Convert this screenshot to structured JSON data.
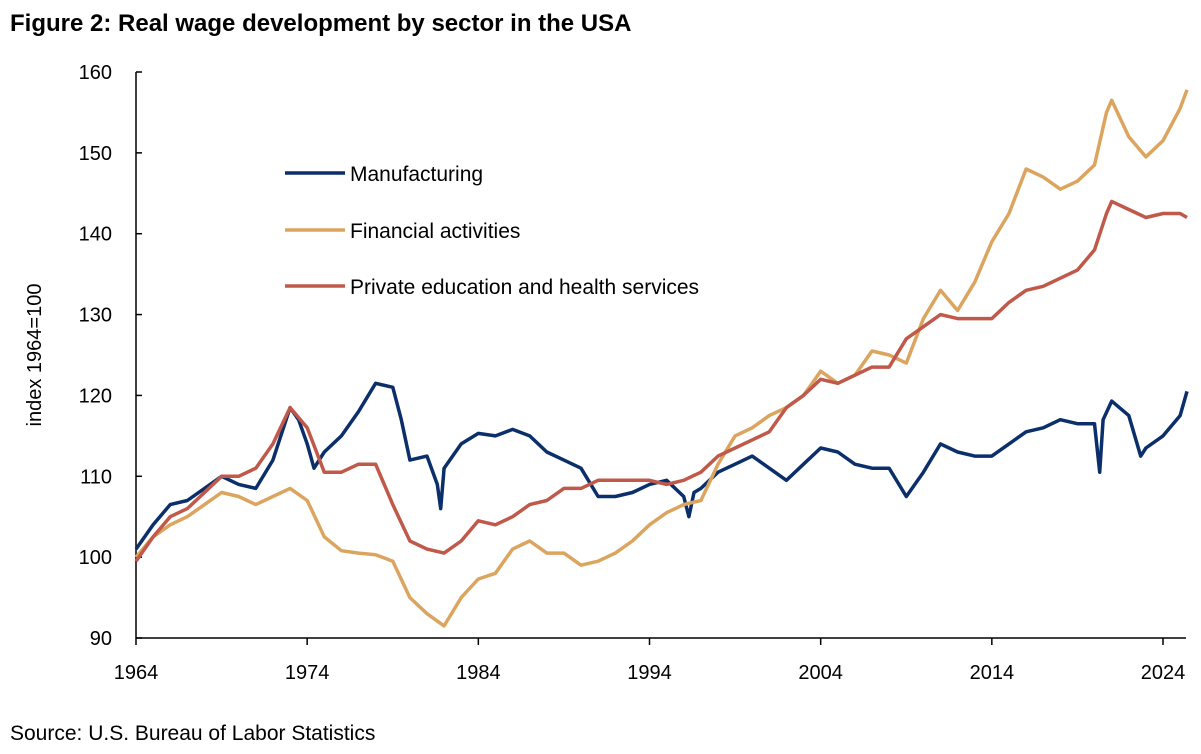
{
  "chart_data": {
    "type": "line",
    "title": "Figure 2: Real wage development by sector in the USA",
    "xlabel": "",
    "ylabel": "index 1964=100",
    "xlim": [
      1964,
      2025.4
    ],
    "ylim": [
      90,
      160
    ],
    "x_ticks": [
      "1964",
      "1974",
      "1984",
      "1994",
      "2004",
      "2014",
      "2024"
    ],
    "y_ticks": [
      "90",
      "100",
      "110",
      "120",
      "130",
      "140",
      "150",
      "160"
    ],
    "grid": false,
    "legend_placement": "top-left",
    "source": "Source: U.S. Bureau of Labor Statistics",
    "series": [
      {
        "name": "Manufacturing",
        "color": "#0b2f6b",
        "points": [
          [
            1964,
            101
          ],
          [
            1965,
            104
          ],
          [
            1966,
            106.5
          ],
          [
            1967,
            107
          ],
          [
            1968,
            108.5
          ],
          [
            1969,
            110
          ],
          [
            1970,
            109
          ],
          [
            1971,
            108.5
          ],
          [
            1972,
            112
          ],
          [
            1973,
            118.5
          ],
          [
            1973.5,
            117
          ],
          [
            1974,
            114
          ],
          [
            1974.4,
            111
          ],
          [
            1975,
            113
          ],
          [
            1976,
            115
          ],
          [
            1977,
            118
          ],
          [
            1978,
            121.5
          ],
          [
            1979,
            121
          ],
          [
            1979.5,
            117
          ],
          [
            1980,
            112
          ],
          [
            1981,
            112.5
          ],
          [
            1981.6,
            109
          ],
          [
            1981.8,
            106
          ],
          [
            1982,
            111
          ],
          [
            1983,
            114
          ],
          [
            1984,
            115.3
          ],
          [
            1985,
            115
          ],
          [
            1986,
            115.8
          ],
          [
            1987,
            115
          ],
          [
            1988,
            113
          ],
          [
            1989,
            112
          ],
          [
            1990,
            111
          ],
          [
            1991,
            107.5
          ],
          [
            1992,
            107.5
          ],
          [
            1993,
            108
          ],
          [
            1994,
            109
          ],
          [
            1995,
            109.5
          ],
          [
            1996,
            107.5
          ],
          [
            1996.3,
            105
          ],
          [
            1996.6,
            108
          ],
          [
            1997,
            108.5
          ],
          [
            1998,
            110.5
          ],
          [
            1999,
            111.5
          ],
          [
            2000,
            112.5
          ],
          [
            2001,
            111
          ],
          [
            2002,
            109.5
          ],
          [
            2003,
            111.5
          ],
          [
            2004,
            113.5
          ],
          [
            2005,
            113
          ],
          [
            2006,
            111.5
          ],
          [
            2007,
            111
          ],
          [
            2008,
            111
          ],
          [
            2009,
            107.5
          ],
          [
            2010,
            110.5
          ],
          [
            2011,
            114
          ],
          [
            2012,
            113
          ],
          [
            2013,
            112.5
          ],
          [
            2014,
            112.5
          ],
          [
            2015,
            114
          ],
          [
            2016,
            115.5
          ],
          [
            2017,
            116
          ],
          [
            2018,
            117
          ],
          [
            2019,
            116.5
          ],
          [
            2020,
            116.5
          ],
          [
            2020.3,
            110.5
          ],
          [
            2020.5,
            117
          ],
          [
            2021,
            119.3
          ],
          [
            2022,
            117.5
          ],
          [
            2022.7,
            112.5
          ],
          [
            2023,
            113.5
          ],
          [
            2024,
            115
          ],
          [
            2025,
            117.5
          ],
          [
            2025.4,
            120.5
          ]
        ]
      },
      {
        "name": "Financial activities",
        "color": "#dba55f",
        "points": [
          [
            1964,
            100
          ],
          [
            1965,
            102.5
          ],
          [
            1966,
            104
          ],
          [
            1967,
            105
          ],
          [
            1968,
            106.5
          ],
          [
            1969,
            108
          ],
          [
            1970,
            107.5
          ],
          [
            1971,
            106.5
          ],
          [
            1972,
            107.5
          ],
          [
            1973,
            108.5
          ],
          [
            1974,
            107
          ],
          [
            1975,
            102.5
          ],
          [
            1976,
            100.8
          ],
          [
            1977,
            100.5
          ],
          [
            1978,
            100.3
          ],
          [
            1979,
            99.5
          ],
          [
            1980,
            95
          ],
          [
            1981,
            93
          ],
          [
            1982,
            91.5
          ],
          [
            1983,
            95
          ],
          [
            1984,
            97.3
          ],
          [
            1985,
            98
          ],
          [
            1986,
            101
          ],
          [
            1987,
            102
          ],
          [
            1988,
            100.5
          ],
          [
            1989,
            100.5
          ],
          [
            1990,
            99
          ],
          [
            1991,
            99.5
          ],
          [
            1992,
            100.5
          ],
          [
            1993,
            102
          ],
          [
            1994,
            104
          ],
          [
            1995,
            105.5
          ],
          [
            1996,
            106.5
          ],
          [
            1997,
            107
          ],
          [
            1998,
            111.5
          ],
          [
            1999,
            115
          ],
          [
            2000,
            116
          ],
          [
            2001,
            117.5
          ],
          [
            2002,
            118.5
          ],
          [
            2003,
            120
          ],
          [
            2004,
            123
          ],
          [
            2005,
            121.5
          ],
          [
            2006,
            122.5
          ],
          [
            2007,
            125.5
          ],
          [
            2008,
            125
          ],
          [
            2009,
            124
          ],
          [
            2010,
            129.5
          ],
          [
            2011,
            133
          ],
          [
            2012,
            130.5
          ],
          [
            2013,
            134
          ],
          [
            2014,
            139
          ],
          [
            2015,
            142.5
          ],
          [
            2016,
            148
          ],
          [
            2017,
            147
          ],
          [
            2018,
            145.5
          ],
          [
            2019,
            146.5
          ],
          [
            2020,
            148.5
          ],
          [
            2020.7,
            155
          ],
          [
            2021,
            156.5
          ],
          [
            2022,
            152
          ],
          [
            2023,
            149.5
          ],
          [
            2024,
            151.5
          ],
          [
            2025,
            155.5
          ],
          [
            2025.4,
            157.8
          ]
        ]
      },
      {
        "name": "Private education and health services",
        "color": "#c0594a",
        "points": [
          [
            1964,
            99.5
          ],
          [
            1965,
            102.5
          ],
          [
            1966,
            105
          ],
          [
            1967,
            106
          ],
          [
            1968,
            108
          ],
          [
            1969,
            110
          ],
          [
            1970,
            110
          ],
          [
            1971,
            111
          ],
          [
            1972,
            114
          ],
          [
            1973,
            118.5
          ],
          [
            1974,
            116
          ],
          [
            1975,
            110.5
          ],
          [
            1976,
            110.5
          ],
          [
            1977,
            111.5
          ],
          [
            1978,
            111.5
          ],
          [
            1979,
            106.5
          ],
          [
            1980,
            102
          ],
          [
            1981,
            101
          ],
          [
            1982,
            100.5
          ],
          [
            1983,
            102
          ],
          [
            1984,
            104.5
          ],
          [
            1985,
            104
          ],
          [
            1986,
            105
          ],
          [
            1987,
            106.5
          ],
          [
            1988,
            107
          ],
          [
            1989,
            108.5
          ],
          [
            1990,
            108.5
          ],
          [
            1991,
            109.5
          ],
          [
            1992,
            109.5
          ],
          [
            1993,
            109.5
          ],
          [
            1994,
            109.5
          ],
          [
            1995,
            109
          ],
          [
            1996,
            109.5
          ],
          [
            1997,
            110.5
          ],
          [
            1998,
            112.5
          ],
          [
            1999,
            113.5
          ],
          [
            2000,
            114.5
          ],
          [
            2001,
            115.5
          ],
          [
            2002,
            118.5
          ],
          [
            2003,
            120
          ],
          [
            2004,
            122
          ],
          [
            2005,
            121.5
          ],
          [
            2006,
            122.5
          ],
          [
            2007,
            123.5
          ],
          [
            2008,
            123.5
          ],
          [
            2009,
            127
          ],
          [
            2010,
            128.5
          ],
          [
            2011,
            130
          ],
          [
            2012,
            129.5
          ],
          [
            2013,
            129.5
          ],
          [
            2014,
            129.5
          ],
          [
            2015,
            131.5
          ],
          [
            2016,
            133
          ],
          [
            2017,
            133.5
          ],
          [
            2018,
            134.5
          ],
          [
            2019,
            135.5
          ],
          [
            2020,
            138
          ],
          [
            2020.7,
            142.5
          ],
          [
            2021,
            144
          ],
          [
            2022,
            143
          ],
          [
            2023,
            142
          ],
          [
            2024,
            142.5
          ],
          [
            2025,
            142.5
          ],
          [
            2025.4,
            142
          ]
        ]
      }
    ]
  }
}
